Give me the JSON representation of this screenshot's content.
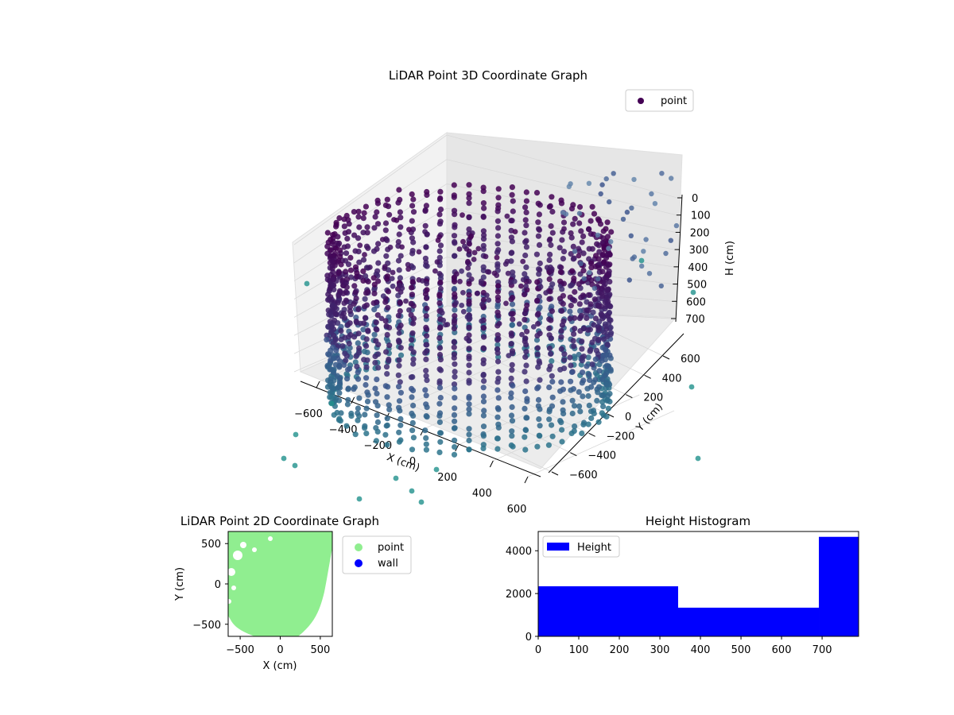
{
  "colors": {
    "point_dark": "#440154",
    "point_mid": "#3b528b",
    "point_teal": "#21918c",
    "point_green2d": "#90ee90",
    "wall": "#0000ff",
    "hist_bar": "#0000ff"
  },
  "chart_data": [
    {
      "type": "scatter",
      "projection": "3d",
      "title": "LiDAR Point 3D Coordinate Graph",
      "xlabel": "X (cm)",
      "ylabel": "Y (cm)",
      "zlabel": "H (cm)",
      "xticks": [
        "−600",
        "−400",
        "−200",
        "0",
        "200",
        "400",
        "600"
      ],
      "yticks": [
        "600",
        "400",
        "200",
        "0",
        "−200",
        "−400",
        "−600"
      ],
      "zticks": [
        "0",
        "100",
        "200",
        "300",
        "400",
        "500",
        "600",
        "700"
      ],
      "xlim": [
        -650,
        650
      ],
      "ylim": [
        -650,
        650
      ],
      "zlim": [
        0,
        750
      ],
      "z_axis_inverted": true,
      "grid": true,
      "legend": {
        "position": "upper right",
        "entries": [
          "point"
        ]
      },
      "colormap": "viridis (by height)",
      "shape": "cylindrical wall of points, radius ~600 cm, with sparse interior and outlier points"
    },
    {
      "type": "scatter",
      "title": "LiDAR Point 2D Coordinate Graph",
      "xlabel": "X (cm)",
      "ylabel": "Y (cm)",
      "xticks": [
        "−500",
        "0",
        "500"
      ],
      "yticks": [
        "500",
        "0",
        "−500"
      ],
      "xlim": [
        -650,
        650
      ],
      "ylim": [
        -650,
        650
      ],
      "legend": {
        "position": "outside right",
        "entries": [
          "point",
          "wall"
        ]
      },
      "series": [
        {
          "name": "point",
          "color": "#90ee90",
          "description": "dense filled disc of points"
        },
        {
          "name": "wall",
          "color": "#0000ff",
          "description": "no visible wall points"
        }
      ]
    },
    {
      "type": "bar",
      "histogram": true,
      "title": "Height Histogram",
      "xticks": [
        "0",
        "100",
        "200",
        "300",
        "400",
        "500",
        "600",
        "700"
      ],
      "yticks": [
        "0",
        "2000",
        "4000"
      ],
      "xlim": [
        0,
        790
      ],
      "ylim": [
        0,
        4900
      ],
      "legend": {
        "position": "upper left",
        "entries": [
          "Height"
        ]
      },
      "bins": [
        {
          "x0": 0,
          "x1": 345,
          "count": 2340
        },
        {
          "x0": 345,
          "x1": 692,
          "count": 1340
        },
        {
          "x0": 692,
          "x1": 790,
          "count": 4650
        }
      ]
    }
  ]
}
